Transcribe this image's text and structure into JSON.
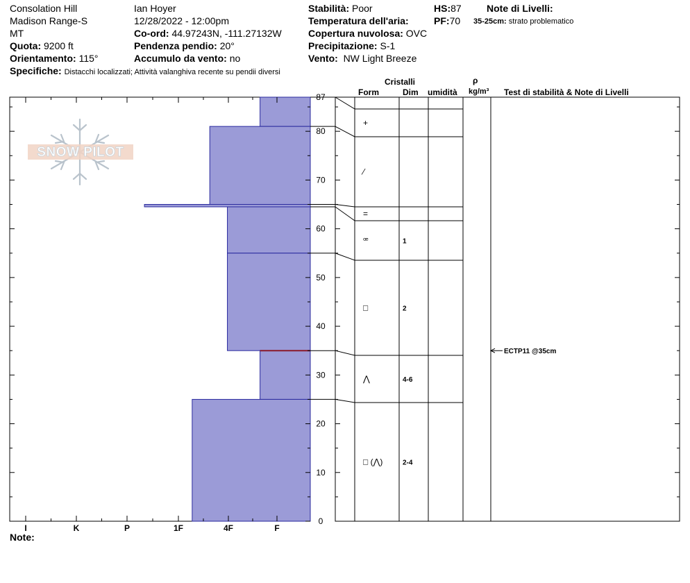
{
  "header": {
    "location": "Consolation Hill",
    "range": "Madison Range-S",
    "state": "MT",
    "observer": "Ian Hoyer",
    "datetime": "12/28/2022 - 12:00pm",
    "coord_label": "Co-ord:",
    "coord_value": "44.97243N, -111.27132W",
    "quota_label": "Quota:",
    "quota_value": "9200 ft",
    "slope_label": "Pendenza pendio:",
    "slope_value": "20°",
    "aspect_label": "Orientamento:",
    "aspect_value": "115°",
    "wind_load_label": "Accumulo da vento:",
    "wind_load_value": "no",
    "specifics_label": "Specifiche:",
    "specifics_value": "Distacchi localizzati; Attività valanghiva recente su pendii diversi",
    "stability_label": "Stabilità:",
    "stability_value": "Poor",
    "air_temp_label": "Temperatura dell'aria:",
    "cloud_label": "Copertura nuvolosa:",
    "cloud_value": "OVC",
    "precip_label": "Precipitazione:",
    "precip_value": "S-1",
    "wind_label": "Vento:",
    "wind_value": "NW Light Breeze",
    "hs_label": "HS:",
    "hs_value": "87",
    "pf_label": "PF:",
    "pf_value": "70",
    "layer_notes_title": "Note di Livelli:",
    "layer_note_range": "35-25cm:",
    "layer_note_text": "strato problematico"
  },
  "columns": {
    "crystals": "Cristalli",
    "form": "Form",
    "dim": "Dim",
    "humidity": "umidità",
    "rho": "ρ",
    "density_unit": "kg/m³",
    "tests": "Test di stabilità & Note di Livelli"
  },
  "footer": {
    "notes_label": "Note:"
  },
  "logo": {
    "text": "SNOW PILOT"
  },
  "chart_data": {
    "type": "bar",
    "title": "",
    "hardness_axis": [
      "I",
      "K",
      "P",
      "1F",
      "4F",
      "F"
    ],
    "yticks": [
      0,
      10,
      20,
      30,
      40,
      50,
      60,
      70,
      80,
      87
    ],
    "ylim": [
      0,
      87
    ],
    "layers": [
      {
        "top": 87,
        "bottom": 81,
        "hardness": "F",
        "hardness_index": 1.0,
        "form": "+",
        "dim": ""
      },
      {
        "top": 81,
        "bottom": 65,
        "hardness": "4F",
        "hardness_index": 2.0,
        "form": "⁄",
        "dim": ""
      },
      {
        "top": 65,
        "bottom": 64.5,
        "hardness": "P-",
        "hardness_index": 3.3,
        "form": "=",
        "dim": ""
      },
      {
        "top": 64.5,
        "bottom": 55,
        "hardness": "4F-",
        "hardness_index": 1.65,
        "form": "ꟹ",
        "dim": "1"
      },
      {
        "top": 55,
        "bottom": 35,
        "hardness": "4F-",
        "hardness_index": 1.65,
        "form": "□",
        "dim": "2"
      },
      {
        "top": 35,
        "bottom": 25,
        "hardness": "F",
        "hardness_index": 1.0,
        "form": "⋀",
        "dim": "4-6"
      },
      {
        "top": 25,
        "bottom": 0,
        "hardness": "1F-",
        "hardness_index": 2.35,
        "form": "□ (⋀)",
        "dim": "2-4"
      }
    ],
    "problem_layer_depth": 35,
    "stability_tests": [
      {
        "depth": 35,
        "label": "ECTP11 @35cm"
      }
    ],
    "colors": {
      "fill": "#9b9bd7",
      "stroke": "#2a2a9e",
      "problem": "#8b1a2a"
    }
  }
}
